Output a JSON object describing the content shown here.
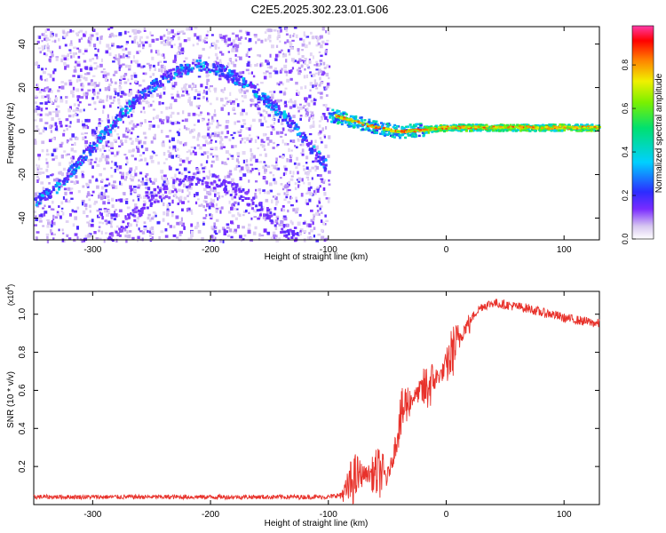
{
  "title": "C2E5.2025.302.23.01.G06",
  "colors": {
    "snr_line": "#e8322b",
    "axis": "#000000"
  },
  "chart_data": [
    {
      "type": "heatmap",
      "xlabel": "Height of straight line (km)",
      "ylabel": "Frequency (Hz)",
      "xlim": [
        -350,
        130
      ],
      "ylim": [
        -50,
        48
      ],
      "xticks": [
        -300,
        -200,
        -100,
        0,
        100
      ],
      "yticks": [
        -40,
        -20,
        0,
        20,
        40
      ],
      "colorbar": {
        "label": "Normalized spectral amplitude",
        "range": [
          0,
          0.98
        ],
        "ticks": [
          "0.0",
          "0.2",
          "0.4",
          "0.6",
          "0.8"
        ],
        "tick_values": [
          0.0,
          0.2,
          0.4,
          0.6,
          0.8
        ],
        "colormap": "rainbow"
      },
      "features": {
        "arc_trace": [
          {
            "x": -350,
            "y": -32
          },
          {
            "x": -330,
            "y": -25
          },
          {
            "x": -310,
            "y": -12
          },
          {
            "x": -290,
            "y": 0
          },
          {
            "x": -270,
            "y": 12
          },
          {
            "x": -250,
            "y": 21
          },
          {
            "x": -230,
            "y": 28
          },
          {
            "x": -210,
            "y": 31
          },
          {
            "x": -190,
            "y": 28
          },
          {
            "x": -170,
            "y": 22
          },
          {
            "x": -150,
            "y": 13
          },
          {
            "x": -130,
            "y": 3
          },
          {
            "x": -115,
            "y": -8
          },
          {
            "x": -103,
            "y": -15
          }
        ],
        "horizontal_trace": [
          {
            "x": -100,
            "y": 8
          },
          {
            "x": -80,
            "y": 5
          },
          {
            "x": -60,
            "y": 2
          },
          {
            "x": -40,
            "y": 0
          },
          {
            "x": -20,
            "y": 1
          },
          {
            "x": 0,
            "y": 2
          },
          {
            "x": 50,
            "y": 2
          },
          {
            "x": 100,
            "y": 2
          },
          {
            "x": 130,
            "y": 2
          }
        ],
        "noise_region_x": [
          -350,
          -100
        ]
      }
    },
    {
      "type": "line",
      "xlabel": "Height of straight line (km)",
      "ylabel": "SNR (10 * v/v)",
      "y_multiplier": "(x10^4)",
      "xlim": [
        -350,
        130
      ],
      "ylim": [
        0.0,
        1.12
      ],
      "xticks": [
        -300,
        -200,
        -100,
        0,
        100
      ],
      "yticks": [
        0.2,
        0.4,
        0.6,
        0.8,
        1.0
      ],
      "series": [
        {
          "x": [
            -350,
            -300,
            -250,
            -200,
            -150,
            -100,
            -90,
            -85,
            -80,
            -75,
            -70,
            -65,
            -60,
            -55,
            -50,
            -45,
            -40,
            -35,
            -30,
            -25,
            -20,
            -15,
            -10,
            -5,
            0,
            5,
            10,
            15,
            20,
            25,
            30,
            35,
            40,
            50,
            60,
            70,
            80,
            90,
            100,
            110,
            120,
            130
          ],
          "values": [
            0.04,
            0.04,
            0.04,
            0.04,
            0.04,
            0.04,
            0.05,
            0.07,
            0.12,
            0.15,
            0.16,
            0.16,
            0.16,
            0.17,
            0.14,
            0.25,
            0.42,
            0.52,
            0.55,
            0.58,
            0.6,
            0.62,
            0.66,
            0.68,
            0.72,
            0.8,
            0.86,
            0.92,
            0.96,
            1.01,
            1.04,
            1.05,
            1.06,
            1.05,
            1.04,
            1.03,
            1.01,
            1.0,
            0.98,
            0.97,
            0.96,
            0.95
          ]
        }
      ]
    }
  ]
}
